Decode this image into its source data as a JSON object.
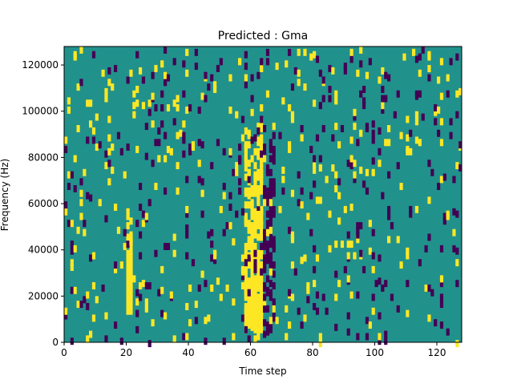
{
  "chart_data": {
    "type": "heatmap",
    "title": "Predicted : Gma",
    "xlabel": "Time step",
    "ylabel": "Frequency (Hz)",
    "xlim": [
      0,
      128
    ],
    "ylim": [
      0,
      128000
    ],
    "x_ticks": [
      0,
      20,
      40,
      60,
      80,
      100,
      120
    ],
    "y_ticks": [
      0,
      20000,
      40000,
      60000,
      80000,
      100000,
      120000
    ],
    "x_tick_labels": [
      "0",
      "20",
      "40",
      "60",
      "80",
      "100",
      "120"
    ],
    "y_tick_labels": [
      "0",
      "20000",
      "40000",
      "60000",
      "80000",
      "100000",
      "120000"
    ],
    "n_time_steps": 128,
    "n_freq_bins": 128,
    "colors": {
      "background": "#21918c",
      "high": "#fde725",
      "low": "#440154"
    },
    "high_cells": [
      [
        20,
        0,
        40,
        1
      ],
      [
        21,
        0,
        40,
        1
      ],
      [
        20,
        0,
        20,
        5
      ],
      [
        21,
        0,
        20,
        5
      ],
      [
        20,
        0,
        20,
        6
      ],
      [
        60,
        0,
        60,
        1
      ],
      [
        61,
        0,
        60,
        1
      ],
      [
        62,
        0,
        60,
        1
      ],
      [
        59,
        0,
        60,
        1
      ],
      [
        60,
        0,
        60,
        2
      ],
      [
        61,
        0,
        60,
        2
      ],
      [
        62,
        0,
        60,
        1
      ],
      [
        63,
        0,
        120,
        1
      ],
      [
        64,
        0,
        120,
        1
      ],
      [
        63,
        0,
        60,
        1
      ],
      [
        1,
        0,
        3,
        1
      ],
      [
        14,
        0,
        14,
        1
      ],
      [
        31,
        0,
        31,
        1
      ],
      [
        43,
        0,
        43,
        1
      ],
      [
        56,
        0,
        56,
        1
      ],
      [
        93,
        0,
        93,
        1
      ],
      [
        114,
        0,
        114,
        1
      ],
      [
        105,
        0,
        105,
        1
      ],
      [
        88,
        0,
        88,
        1
      ]
    ],
    "low_cells": [
      [
        66,
        0,
        66,
        1
      ],
      [
        67,
        0,
        67,
        1
      ],
      [
        68,
        0,
        68,
        1
      ],
      [
        4,
        0,
        4,
        1
      ],
      [
        26,
        0,
        26,
        1
      ],
      [
        40,
        0,
        40,
        1
      ],
      [
        80,
        0,
        80,
        1
      ],
      [
        100,
        0,
        100,
        1
      ],
      [
        122,
        0,
        122,
        1
      ],
      [
        47,
        0,
        47,
        1
      ]
    ]
  }
}
